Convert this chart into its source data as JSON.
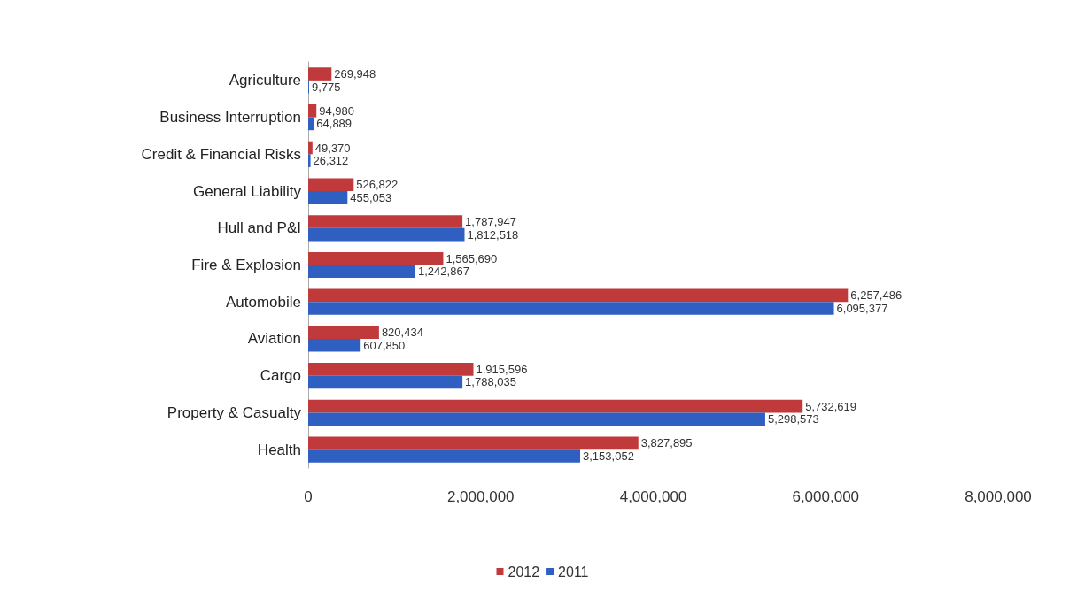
{
  "chart_data": {
    "type": "bar",
    "orientation": "horizontal",
    "categories": [
      "Agriculture",
      "Business Interruption",
      "Credit & Financial Risks",
      "General Liability",
      "Hull and P&I",
      "Fire & Explosion",
      "Automobile",
      "Aviation",
      "Cargo",
      "Property & Casualty",
      "Health"
    ],
    "series": [
      {
        "name": "2012",
        "color": "#c0393b",
        "values": [
          269948,
          94980,
          49370,
          526822,
          1787947,
          1565690,
          6257486,
          820434,
          1915596,
          5732619,
          3827895
        ],
        "value_labels": [
          "269,948",
          "94,980",
          "49,370",
          "526,822",
          "1,787,947",
          "1,565,690",
          "6,257,486",
          "820,434",
          "1,915,596",
          "5,732,619",
          "3,827,895"
        ]
      },
      {
        "name": "2011",
        "color": "#2e5fc1",
        "values": [
          9775,
          64889,
          26312,
          455053,
          1812518,
          1242867,
          6095377,
          607850,
          1788035,
          5298573,
          3153052
        ],
        "value_labels": [
          "9,775",
          "64,889",
          "26,312",
          "455,053",
          "1,812,518",
          "1,242,867",
          "6,095,377",
          "607,850",
          "1,788,035",
          "5,298,573",
          "3,153,052"
        ]
      }
    ],
    "xlim": [
      0,
      8000000
    ],
    "xticks": [
      {
        "value": 0,
        "label": "0"
      },
      {
        "value": 2000000,
        "label": "2,000,000"
      },
      {
        "value": 4000000,
        "label": "4,000,000"
      },
      {
        "value": 6000000,
        "label": "6,000,000"
      },
      {
        "value": 8000000,
        "label": "8,000,000"
      }
    ],
    "legend": "bottom",
    "grid": false
  }
}
